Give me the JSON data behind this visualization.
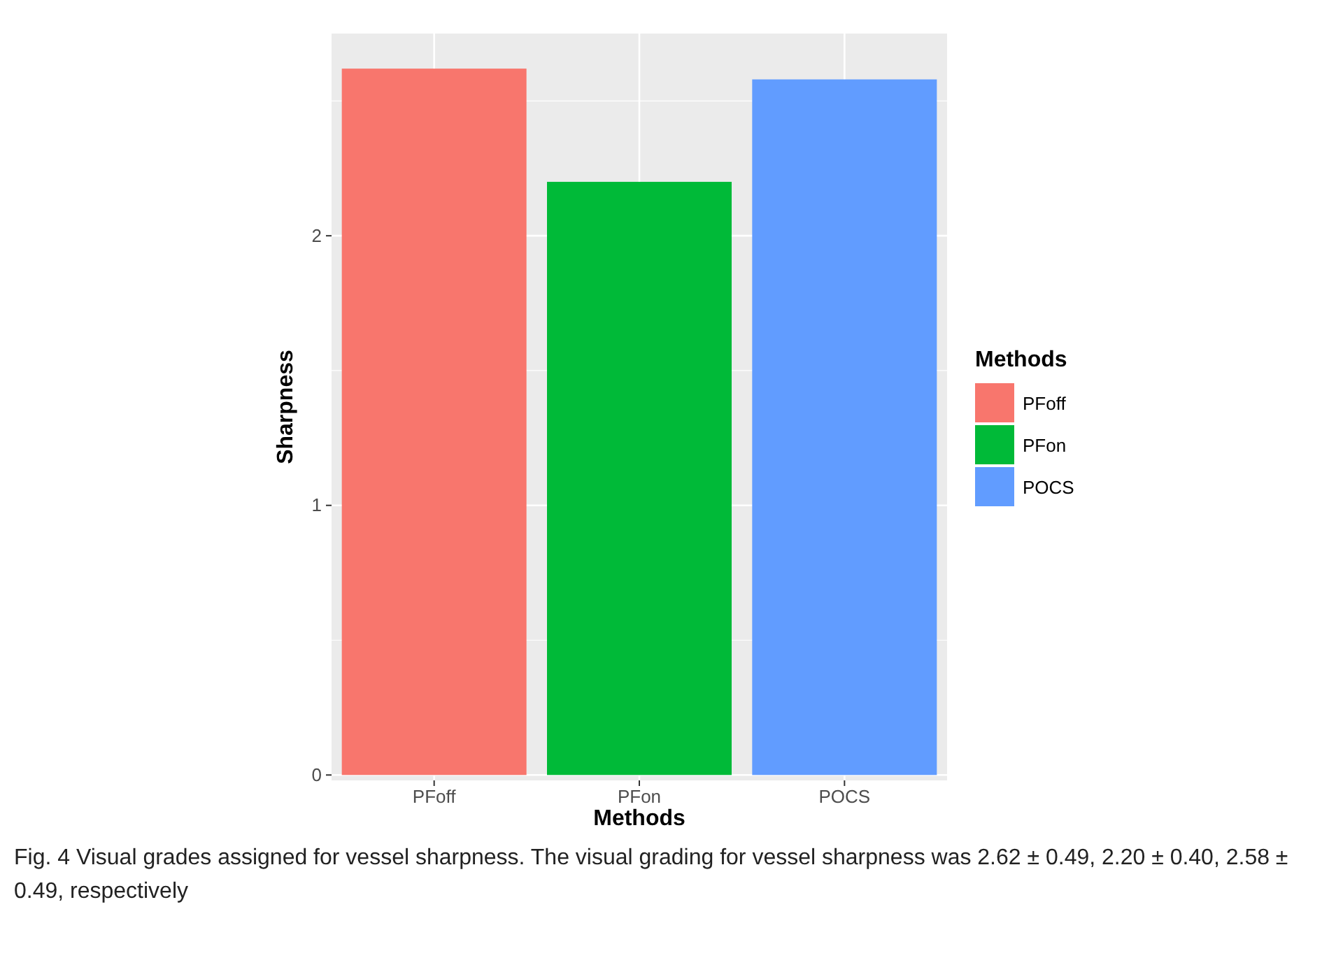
{
  "chart_data": {
    "type": "bar",
    "categories": [
      "PFoff",
      "PFon",
      "POCS"
    ],
    "stacked": true,
    "series": [
      {
        "name": "PFoff",
        "color": "#f8766d",
        "values": [
          2.62,
          null,
          null
        ]
      },
      {
        "name": "PFon",
        "color": "#00ba38",
        "values": [
          null,
          2.2,
          null
        ]
      },
      {
        "name": "POCS",
        "color": "#619cff",
        "values": [
          null,
          null,
          2.58
        ]
      }
    ],
    "xlabel": "Methods",
    "ylabel": "Sharpness",
    "legend_title": "Methods",
    "legend": "right",
    "ylim": [
      -0.02,
      2.75
    ],
    "yticks": [
      0,
      1,
      2
    ],
    "grid": true,
    "annotations": [
      "Fig. 4  Visual grades assigned for vessel sharpness. The visual grading for vessel sharpness was 2.62 ± 0.49, 2.20 ± 0.40, 2.58 ± 0.49, respectively"
    ]
  }
}
